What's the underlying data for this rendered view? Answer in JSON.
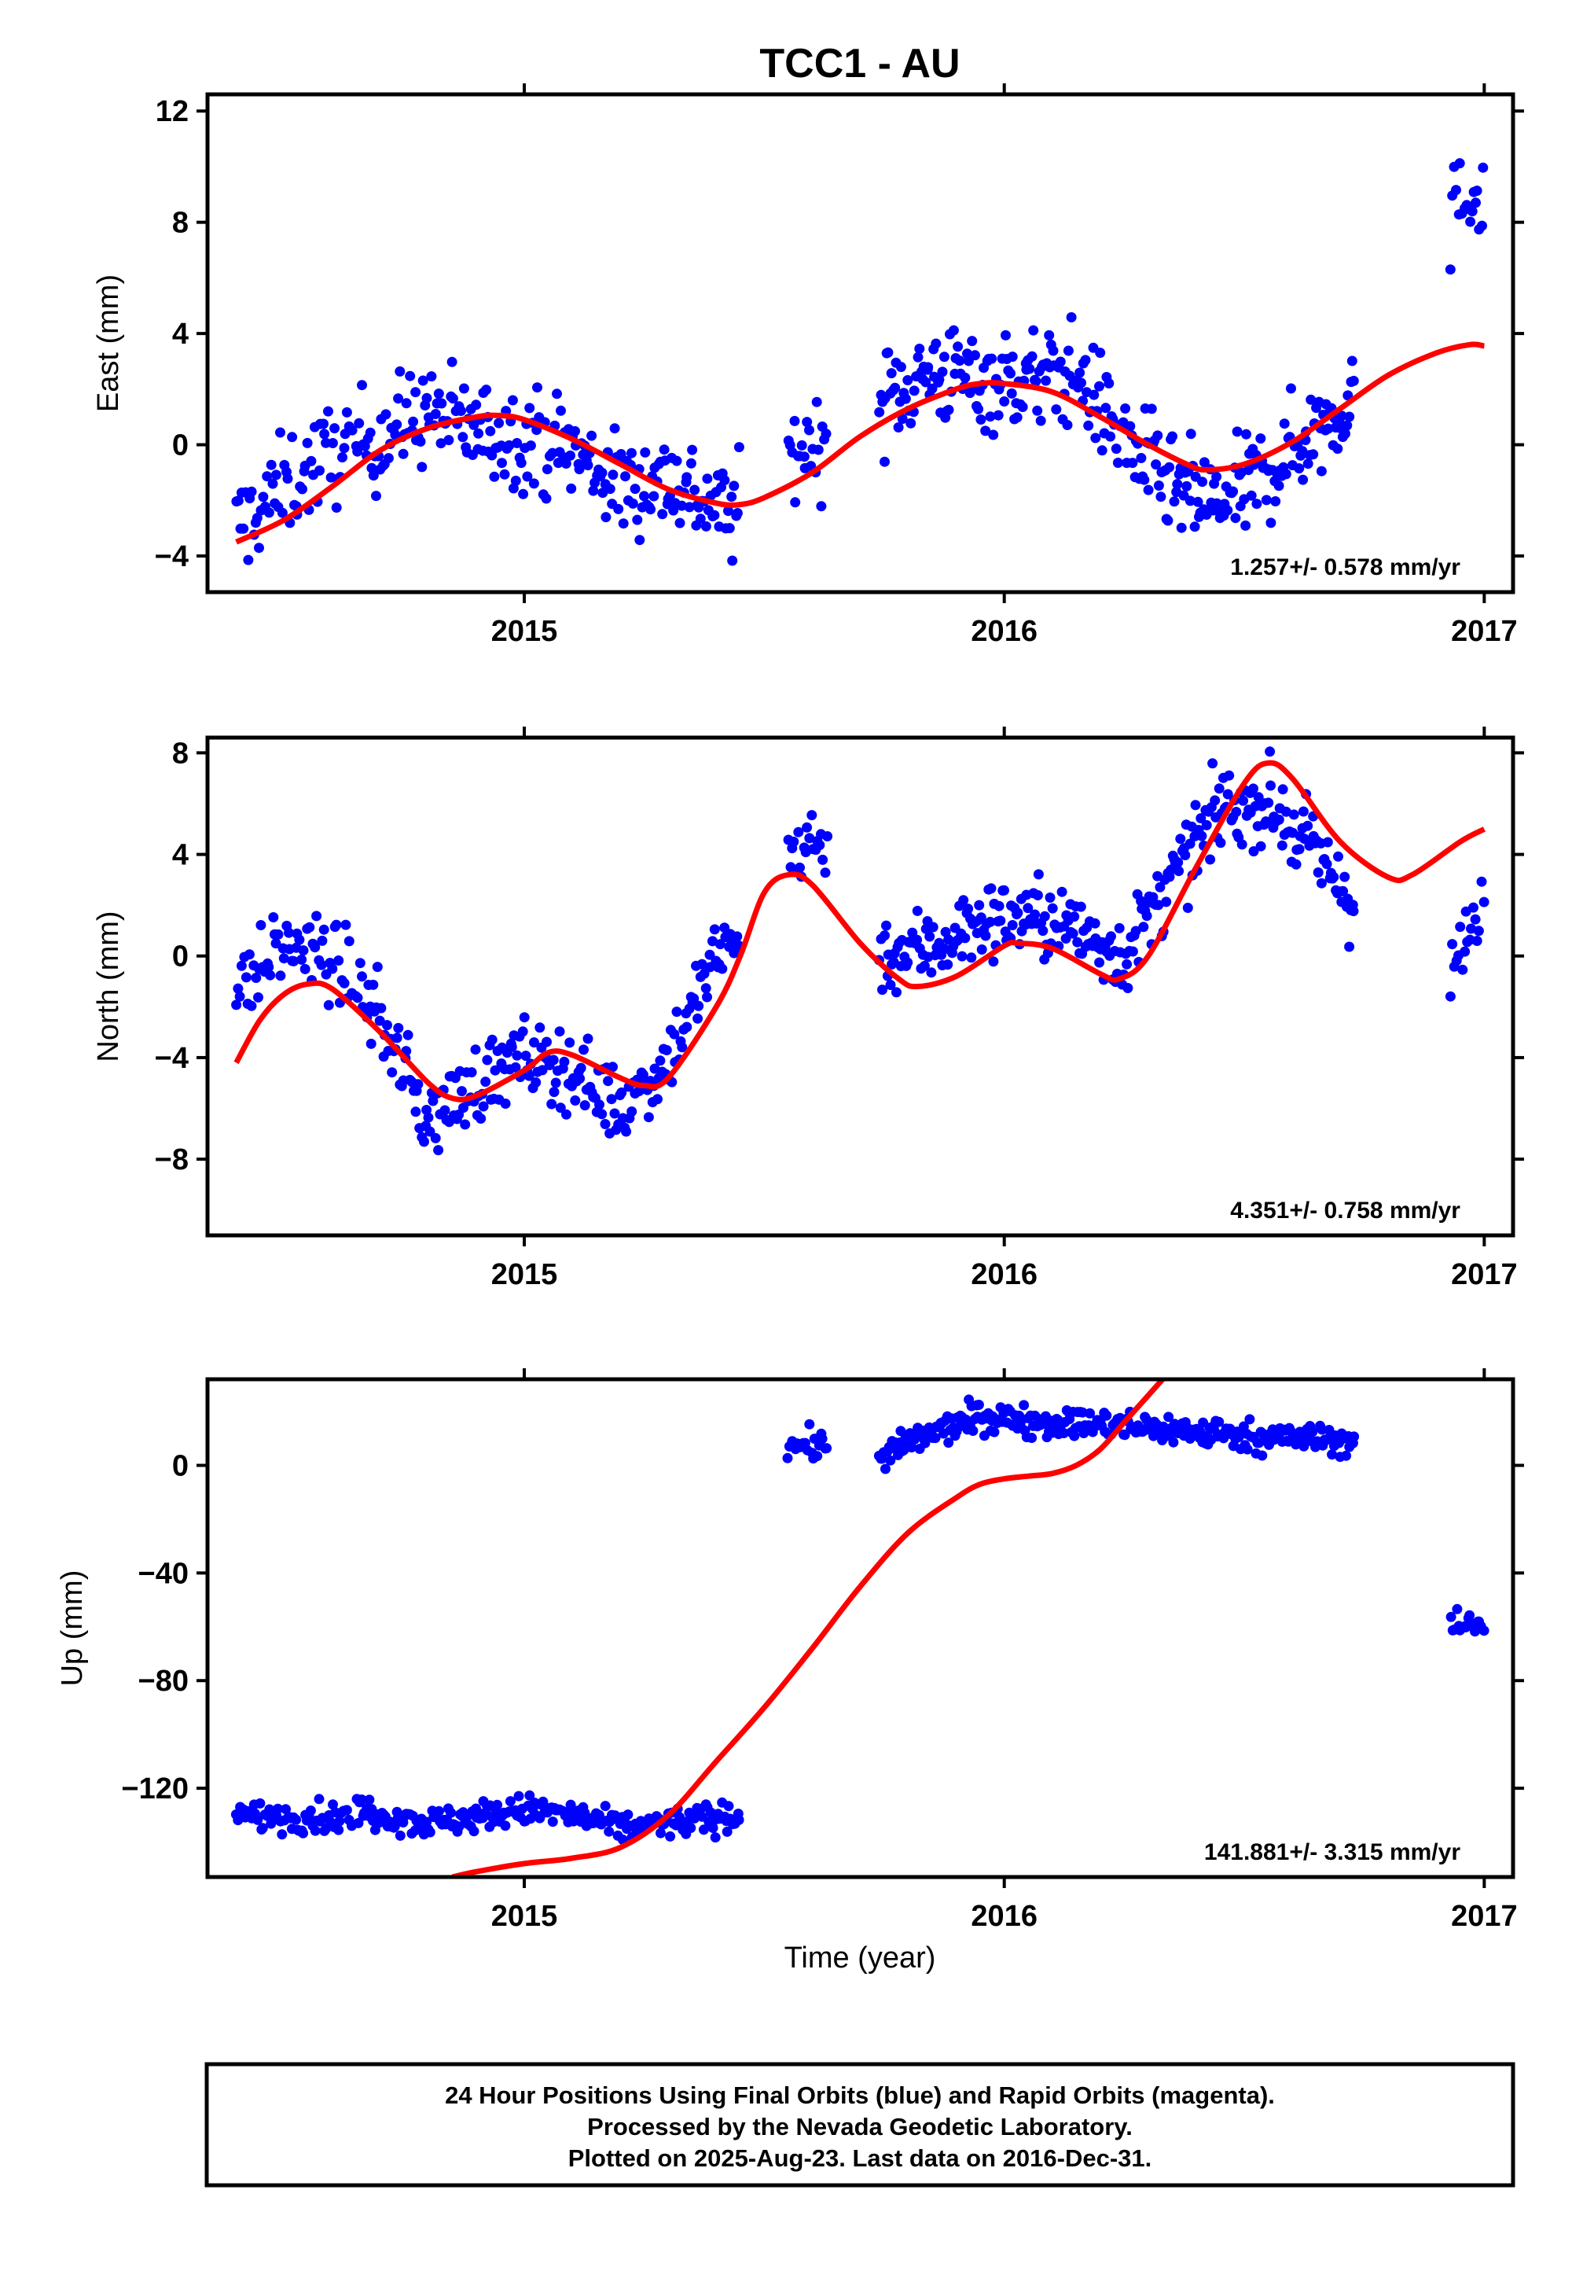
{
  "figure": {
    "title": "TCC1 - AU",
    "xlabel": "Time (year)",
    "footer": [
      "24 Hour Positions Using Final Orbits (blue) and Rapid Orbits (magenta).",
      "Processed by the Nevada Geodetic Laboratory.",
      "Plotted on 2025-Aug-23. Last data on 2016-Dec-31."
    ],
    "colors": {
      "data": "#0000ff",
      "model": "#ff0000",
      "frame": "#000000"
    }
  },
  "chart_data": [
    {
      "type": "scatter",
      "ylabel": "East (mm)",
      "rate_label": "1.257+/- 0.578 mm/yr",
      "xlim": [
        2014.34,
        2017.06
      ],
      "ylim": [
        -5.3,
        12.6
      ],
      "x_ticks": [
        "2015",
        "2016",
        "2017"
      ],
      "y_ticks": [
        "12",
        "8",
        "4",
        "0",
        "-4"
      ],
      "series": [
        {
          "role": "daily-positions",
          "segments": [
            {
              "x_start": 2014.4,
              "x_end": 2014.64,
              "step": 0.004
            },
            {
              "x_start": 2014.65,
              "x_end": 2015.45,
              "step": 0.0035
            },
            {
              "x_start": 2015.55,
              "x_end": 2015.63,
              "step": 0.004
            },
            {
              "x_start": 2015.74,
              "x_end": 2016.73,
              "step": 0.0032
            },
            {
              "x_start": 2016.93,
              "x_end": 2017.0,
              "step": 0.004
            }
          ],
          "knots": [
            [
              2014.4,
              -3.0
            ],
            [
              2014.5,
              -1.5
            ],
            [
              2014.6,
              -0.3
            ],
            [
              2014.7,
              0.3
            ],
            [
              2014.8,
              1.2
            ],
            [
              2014.9,
              0.5
            ],
            [
              2015.0,
              0.3
            ],
            [
              2015.1,
              -0.2
            ],
            [
              2015.2,
              -1.5
            ],
            [
              2015.3,
              -1.2
            ],
            [
              2015.4,
              -2.2
            ],
            [
              2015.45,
              -2.5
            ],
            [
              2015.55,
              -0.2
            ],
            [
              2015.63,
              0.1
            ],
            [
              2015.74,
              1.6
            ],
            [
              2015.85,
              2.6
            ],
            [
              2015.95,
              2.3
            ],
            [
              2016.05,
              2.3
            ],
            [
              2016.15,
              2.6
            ],
            [
              2016.25,
              0.2
            ],
            [
              2016.35,
              -1.6
            ],
            [
              2016.45,
              -2.2
            ],
            [
              2016.55,
              -1.0
            ],
            [
              2016.65,
              0.6
            ],
            [
              2016.73,
              1.8
            ],
            [
              2016.93,
              8.0
            ],
            [
              2016.96,
              9.0
            ],
            [
              2017.0,
              9.5
            ]
          ],
          "scatter_mm": 1.3
        },
        {
          "role": "model",
          "points": [
            [
              2014.4,
              -3.5
            ],
            [
              2014.5,
              -2.7
            ],
            [
              2014.6,
              -1.5
            ],
            [
              2014.7,
              -0.2
            ],
            [
              2014.8,
              0.6
            ],
            [
              2014.9,
              1.0
            ],
            [
              2014.95,
              1.05
            ],
            [
              2015.0,
              0.9
            ],
            [
              2015.1,
              0.2
            ],
            [
              2015.2,
              -0.7
            ],
            [
              2015.3,
              -1.6
            ],
            [
              2015.4,
              -2.1
            ],
            [
              2015.45,
              -2.15
            ],
            [
              2015.5,
              -1.9
            ],
            [
              2015.6,
              -1.0
            ],
            [
              2015.7,
              0.3
            ],
            [
              2015.8,
              1.3
            ],
            [
              2015.9,
              2.0
            ],
            [
              2015.95,
              2.2
            ],
            [
              2016.0,
              2.2
            ],
            [
              2016.1,
              1.9
            ],
            [
              2016.2,
              1.0
            ],
            [
              2016.3,
              0.0
            ],
            [
              2016.38,
              -0.7
            ],
            [
              2016.42,
              -0.9
            ],
            [
              2016.5,
              -0.7
            ],
            [
              2016.6,
              0.1
            ],
            [
              2016.7,
              1.3
            ],
            [
              2016.8,
              2.5
            ],
            [
              2016.9,
              3.3
            ],
            [
              2016.97,
              3.6
            ],
            [
              2017.0,
              3.55
            ]
          ]
        }
      ]
    },
    {
      "type": "scatter",
      "ylabel": "North (mm)",
      "rate_label": "4.351+/- 0.758 mm/yr",
      "xlim": [
        2014.34,
        2017.06
      ],
      "ylim": [
        -11.0,
        8.6
      ],
      "x_ticks": [
        "2015",
        "2016",
        "2017"
      ],
      "y_ticks": [
        "8",
        "4",
        "0",
        "-4",
        "-8"
      ],
      "series": [
        {
          "role": "daily-positions",
          "segments": [
            {
              "x_start": 2014.4,
              "x_end": 2014.64,
              "step": 0.004
            },
            {
              "x_start": 2014.65,
              "x_end": 2015.45,
              "step": 0.0035
            },
            {
              "x_start": 2015.55,
              "x_end": 2015.63,
              "step": 0.004
            },
            {
              "x_start": 2015.74,
              "x_end": 2016.73,
              "step": 0.0032
            },
            {
              "x_start": 2016.93,
              "x_end": 2017.0,
              "step": 0.004
            }
          ],
          "knots": [
            [
              2014.4,
              -1.5
            ],
            [
              2014.5,
              0.5
            ],
            [
              2014.6,
              -0.2
            ],
            [
              2014.65,
              -1.0
            ],
            [
              2014.7,
              -2.5
            ],
            [
              2014.8,
              -6.5
            ],
            [
              2014.9,
              -5.0
            ],
            [
              2015.0,
              -4.0
            ],
            [
              2015.1,
              -4.5
            ],
            [
              2015.2,
              -6.0
            ],
            [
              2015.3,
              -4.0
            ],
            [
              2015.4,
              0.0
            ],
            [
              2015.45,
              0.5
            ],
            [
              2015.55,
              4.2
            ],
            [
              2015.63,
              4.6
            ],
            [
              2015.74,
              0.0
            ],
            [
              2015.85,
              0.4
            ],
            [
              2015.95,
              1.3
            ],
            [
              2016.05,
              1.6
            ],
            [
              2016.15,
              1.0
            ],
            [
              2016.25,
              0.0
            ],
            [
              2016.35,
              3.0
            ],
            [
              2016.45,
              5.8
            ],
            [
              2016.55,
              6.0
            ],
            [
              2016.65,
              4.0
            ],
            [
              2016.73,
              2.0
            ],
            [
              2016.93,
              -0.5
            ],
            [
              2017.0,
              1.5
            ]
          ],
          "scatter_mm": 1.1
        },
        {
          "role": "model",
          "points": [
            [
              2014.4,
              -4.2
            ],
            [
              2014.45,
              -2.5
            ],
            [
              2014.5,
              -1.5
            ],
            [
              2014.55,
              -1.1
            ],
            [
              2014.6,
              -1.3
            ],
            [
              2014.7,
              -3.0
            ],
            [
              2014.8,
              -5.0
            ],
            [
              2014.85,
              -5.6
            ],
            [
              2014.9,
              -5.5
            ],
            [
              2015.0,
              -4.5
            ],
            [
              2015.05,
              -3.8
            ],
            [
              2015.1,
              -3.9
            ],
            [
              2015.2,
              -4.8
            ],
            [
              2015.25,
              -5.1
            ],
            [
              2015.3,
              -4.8
            ],
            [
              2015.4,
              -2.0
            ],
            [
              2015.45,
              0.0
            ],
            [
              2015.5,
              2.5
            ],
            [
              2015.55,
              3.2
            ],
            [
              2015.6,
              2.8
            ],
            [
              2015.7,
              0.5
            ],
            [
              2015.78,
              -0.9
            ],
            [
              2015.82,
              -1.2
            ],
            [
              2015.9,
              -0.8
            ],
            [
              2016.0,
              0.4
            ],
            [
              2016.03,
              0.5
            ],
            [
              2016.1,
              0.3
            ],
            [
              2016.2,
              -0.7
            ],
            [
              2016.24,
              -0.9
            ],
            [
              2016.3,
              0.0
            ],
            [
              2016.4,
              3.5
            ],
            [
              2016.5,
              6.8
            ],
            [
              2016.55,
              7.6
            ],
            [
              2016.6,
              7.0
            ],
            [
              2016.7,
              4.5
            ],
            [
              2016.8,
              3.1
            ],
            [
              2016.85,
              3.2
            ],
            [
              2016.95,
              4.5
            ],
            [
              2017.0,
              5.0
            ]
          ]
        }
      ]
    },
    {
      "type": "scatter",
      "ylabel": "Up (mm)",
      "rate_label": "141.881+/- 3.315 mm/yr",
      "xlim": [
        2014.34,
        2017.06
      ],
      "ylim": [
        -153,
        32
      ],
      "x_ticks": [
        "2015",
        "2016",
        "2017"
      ],
      "y_ticks": [
        "0",
        "-40",
        "-80",
        "-120"
      ],
      "series": [
        {
          "role": "daily-positions",
          "segments": [
            {
              "x_start": 2014.4,
              "x_end": 2014.64,
              "step": 0.004
            },
            {
              "x_start": 2014.65,
              "x_end": 2015.45,
              "step": 0.0035
            },
            {
              "x_start": 2015.55,
              "x_end": 2015.63,
              "step": 0.004
            },
            {
              "x_start": 2015.74,
              "x_end": 2016.73,
              "step": 0.0032
            },
            {
              "x_start": 2016.93,
              "x_end": 2017.0,
              "step": 0.004
            }
          ],
          "knots": [
            [
              2014.4,
              -130
            ],
            [
              2014.64,
              -131
            ],
            [
              2014.65,
              -128
            ],
            [
              2014.8,
              -133
            ],
            [
              2015.0,
              -128
            ],
            [
              2015.1,
              -130
            ],
            [
              2015.2,
              -135
            ],
            [
              2015.3,
              -133
            ],
            [
              2015.45,
              -130
            ],
            [
              2015.55,
              8
            ],
            [
              2015.63,
              7
            ],
            [
              2015.74,
              3
            ],
            [
              2015.85,
              12
            ],
            [
              2015.95,
              18
            ],
            [
              2016.1,
              16
            ],
            [
              2016.3,
              14
            ],
            [
              2016.5,
              11
            ],
            [
              2016.73,
              9
            ],
            [
              2016.93,
              -60
            ],
            [
              2017.0,
              -59
            ]
          ],
          "scatter_mm": 4.0
        },
        {
          "role": "model",
          "points": [
            [
              2014.85,
              -153
            ],
            [
              2014.9,
              -151
            ],
            [
              2015.0,
              -148
            ],
            [
              2015.1,
              -146
            ],
            [
              2015.2,
              -142
            ],
            [
              2015.3,
              -130
            ],
            [
              2015.4,
              -110
            ],
            [
              2015.5,
              -90
            ],
            [
              2015.6,
              -68
            ],
            [
              2015.7,
              -45
            ],
            [
              2015.8,
              -25
            ],
            [
              2015.9,
              -12
            ],
            [
              2015.95,
              -7
            ],
            [
              2016.0,
              -5
            ],
            [
              2016.05,
              -4
            ],
            [
              2016.1,
              -3
            ],
            [
              2016.15,
              0
            ],
            [
              2016.2,
              6
            ],
            [
              2016.25,
              16
            ],
            [
              2016.3,
              26
            ],
            [
              2016.33,
              32
            ]
          ]
        }
      ]
    }
  ]
}
